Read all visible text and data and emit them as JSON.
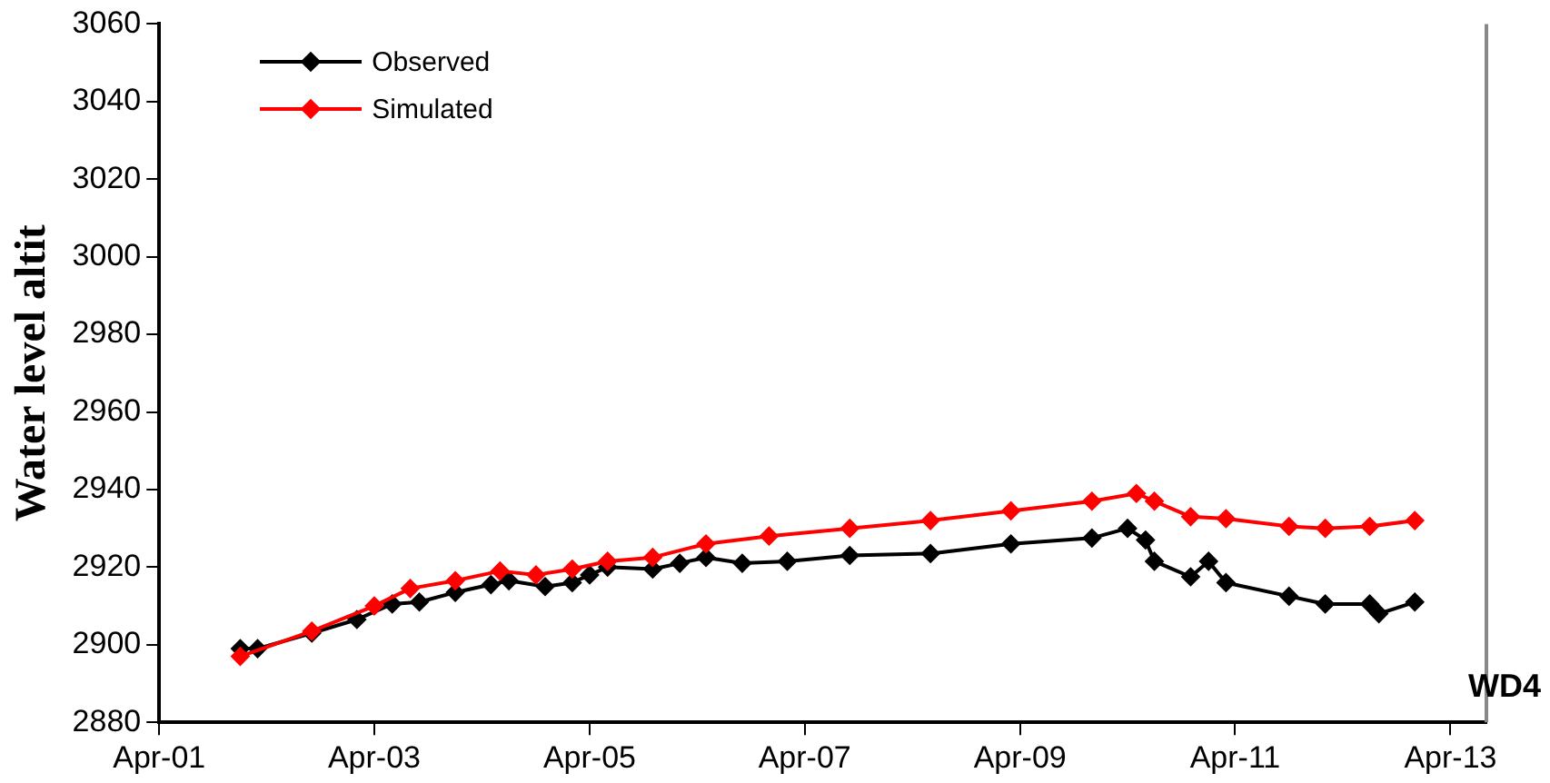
{
  "chart_data": {
    "type": "line",
    "ylabel": "Water level altit",
    "annotations": [
      "WD4"
    ],
    "marker": "diamond",
    "line_style": "solid",
    "grid": false,
    "legend": "top left",
    "xlim": [
      "2001-04",
      "2013-08"
    ],
    "xticks": [
      {
        "value": "2001-04",
        "label": "Apr-01"
      },
      {
        "value": "2003-04",
        "label": "Apr-03"
      },
      {
        "value": "2005-04",
        "label": "Apr-05"
      },
      {
        "value": "2007-04",
        "label": "Apr-07"
      },
      {
        "value": "2009-04",
        "label": "Apr-09"
      },
      {
        "value": "2011-04",
        "label": "Apr-11"
      },
      {
        "value": "2013-04",
        "label": "Apr-13"
      }
    ],
    "ylim": [
      2880,
      3060
    ],
    "yticks": [
      2880,
      2900,
      2920,
      2940,
      2960,
      2980,
      3000,
      3020,
      3040,
      3060
    ],
    "series": [
      {
        "name": "Observed",
        "color": "#000000",
        "x": [
          "2002-01",
          "2002-03",
          "2002-09",
          "2003-02",
          "2003-06",
          "2003-09",
          "2004-01",
          "2004-05",
          "2004-07",
          "2004-11",
          "2005-02",
          "2005-04",
          "2005-06",
          "2005-11",
          "2006-02",
          "2006-05",
          "2006-09",
          "2007-02",
          "2007-09",
          "2008-06",
          "2009-03",
          "2009-12",
          "2010-04",
          "2010-06",
          "2010-07",
          "2010-11",
          "2011-01",
          "2011-03",
          "2011-10",
          "2012-02",
          "2012-07",
          "2012-08",
          "2012-12"
        ],
        "values": [
          2899,
          2899,
          2903,
          2906.5,
          2910.5,
          2911,
          2913.5,
          2915.5,
          2916.5,
          2915,
          2916,
          2918,
          2920,
          2919.5,
          2921,
          2922.5,
          2921,
          2921.5,
          2923,
          2923.5,
          2926,
          2927.5,
          2930,
          2927,
          2921.5,
          2917.5,
          2921.5,
          2916,
          2912.5,
          2910.5,
          2910.5,
          2908,
          2911
        ]
      },
      {
        "name": "Simulated",
        "color": "#ff0000",
        "x": [
          "2002-01",
          "2002-09",
          "2003-04",
          "2003-08",
          "2004-01",
          "2004-06",
          "2004-10",
          "2005-02",
          "2005-06",
          "2005-11",
          "2006-05",
          "2006-12",
          "2007-09",
          "2008-06",
          "2009-03",
          "2009-12",
          "2010-05",
          "2010-07",
          "2010-11",
          "2011-03",
          "2011-10",
          "2012-02",
          "2012-07",
          "2012-12"
        ],
        "values": [
          2897,
          2903.5,
          2910,
          2914.5,
          2916.5,
          2919,
          2918,
          2919.5,
          2921.5,
          2922.5,
          2926,
          2928,
          2930,
          2932,
          2934.5,
          2937,
          2939,
          2937,
          2933,
          2932.5,
          2930.5,
          2930,
          2930.5,
          2932
        ]
      }
    ]
  }
}
